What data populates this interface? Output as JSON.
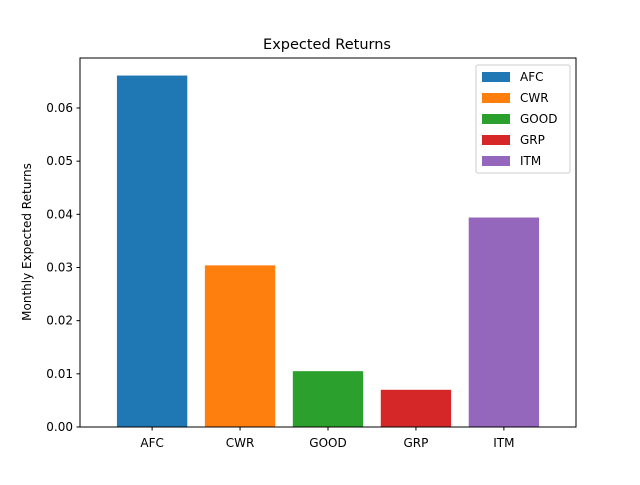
{
  "chart_data": {
    "type": "bar",
    "title": "Expected Returns",
    "xlabel": "",
    "ylabel": "Monthly Expected Returns",
    "categories": [
      "AFC",
      "CWR",
      "GOOD",
      "GRP",
      "ITM"
    ],
    "values": [
      0.0661,
      0.0304,
      0.0105,
      0.007,
      0.0394
    ],
    "colors": [
      "#1f77b4",
      "#ff7f0e",
      "#2ca02c",
      "#d62728",
      "#9467bd"
    ],
    "ylim": [
      0,
      0.0694
    ],
    "yticks": [
      0.0,
      0.01,
      0.02,
      0.03,
      0.04,
      0.05,
      0.06
    ],
    "ytick_labels": [
      "0.00",
      "0.01",
      "0.02",
      "0.03",
      "0.04",
      "0.05",
      "0.06"
    ],
    "legend": {
      "position": "top-right",
      "entries": [
        "AFC",
        "CWR",
        "GOOD",
        "GRP",
        "ITM"
      ]
    },
    "grid": false
  }
}
